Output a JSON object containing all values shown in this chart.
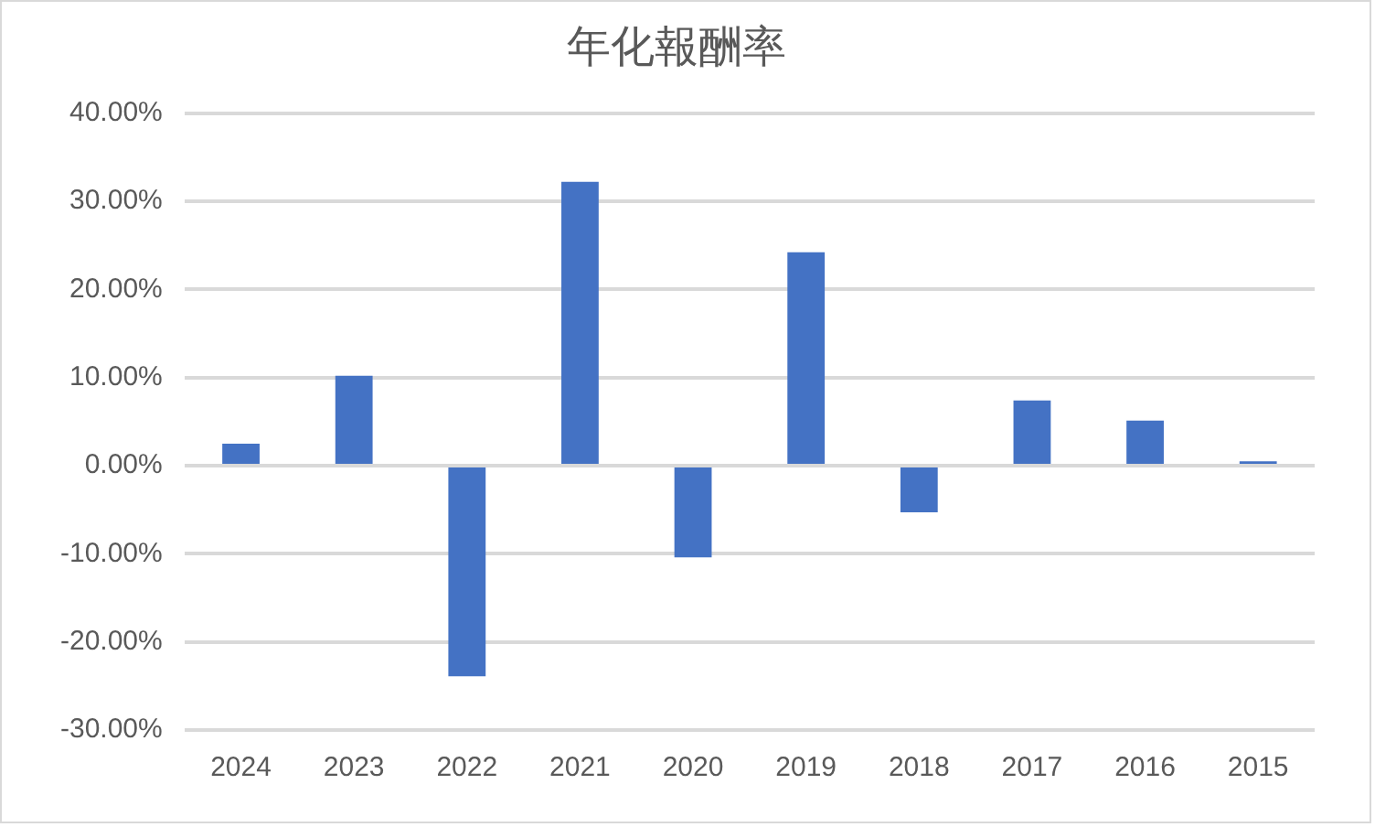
{
  "chart_data": {
    "type": "bar",
    "title": "年化報酬率",
    "categories": [
      "2024",
      "2023",
      "2022",
      "2021",
      "2020",
      "2019",
      "2018",
      "2017",
      "2016",
      "2015"
    ],
    "values": [
      2.5,
      10.2,
      -23.9,
      32.2,
      -10.4,
      24.2,
      -5.3,
      7.4,
      5.1,
      0.5
    ],
    "color": "#4472c4",
    "ylim": [
      -30,
      40
    ],
    "yticks": [
      {
        "value": -30,
        "label": "-30.00%"
      },
      {
        "value": -20,
        "label": "-20.00%"
      },
      {
        "value": -10,
        "label": "-10.00%"
      },
      {
        "value": 0,
        "label": "0.00%"
      },
      {
        "value": 10,
        "label": "10.00%"
      },
      {
        "value": 20,
        "label": "20.00%"
      },
      {
        "value": 30,
        "label": "30.00%"
      },
      {
        "value": 40,
        "label": "40.00%"
      }
    ],
    "grid": "y",
    "legend": false
  }
}
